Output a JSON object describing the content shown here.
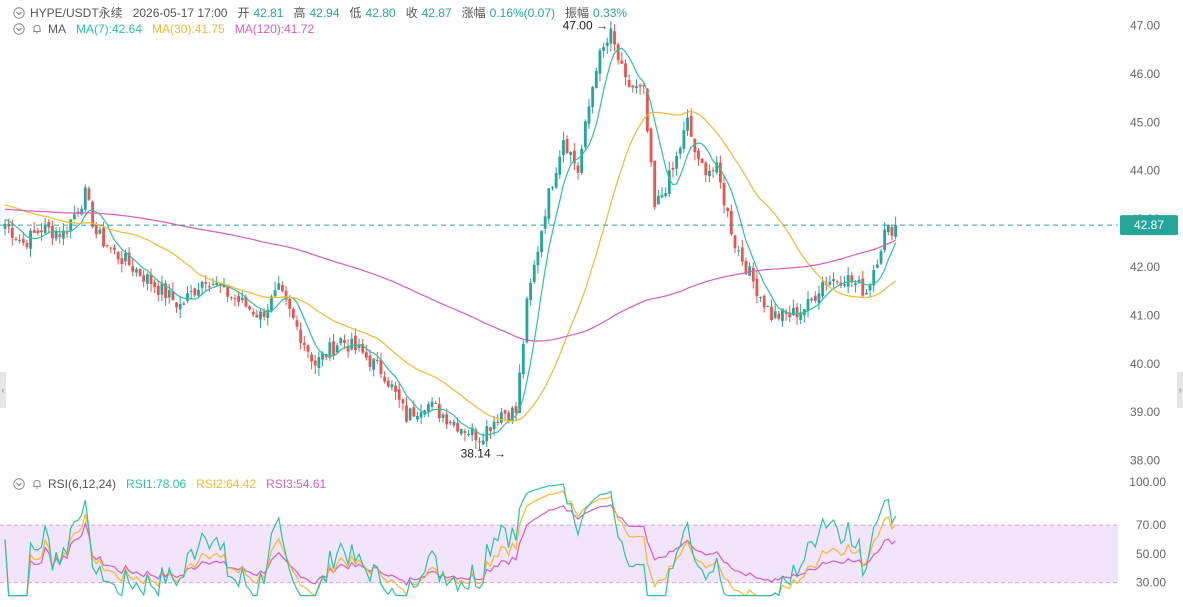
{
  "header": {
    "symbol": "HYPE/USDT永续",
    "datetime": "2026-05-17 17:00",
    "open_label": "开",
    "open": "42.81",
    "high_label": "高",
    "high": "42.94",
    "low_label": "低",
    "low": "42.80",
    "close_label": "收",
    "close": "42.87",
    "change_label": "涨幅",
    "change": "0.16%(0.07)",
    "amp_label": "振幅",
    "amp": "0.33%"
  },
  "ma_legend": {
    "label": "MA",
    "ma7": "MA(7):42.64",
    "ma30": "MA(30):41.75",
    "ma120": "MA(120):41.72"
  },
  "rsi_legend": {
    "label": "RSI(6,12,24)",
    "rsi1": "RSI1:78.06",
    "rsi2": "RSI2:64.42",
    "rsi3": "RSI3:54.61"
  },
  "colors": {
    "up": "#26a69a",
    "down": "#ef5350",
    "ma7": "#2bc4a0",
    "ma30": "#f5b82e",
    "ma120": "#d65cc2",
    "rsi_band": "#f1e4fb",
    "price_line": "#26a69a"
  },
  "icons": {
    "collapse": "chevron-down-icon",
    "visibility": "bell-icon"
  },
  "chart_data": {
    "type": "candlestick",
    "price_axis": {
      "ticks": [
        "47.00",
        "46.00",
        "45.00",
        "44.00",
        "43.00",
        "42.00",
        "41.00",
        "40.00",
        "39.00",
        "38.00"
      ],
      "range": [
        37.8,
        47.45
      ]
    },
    "rsi_axis": {
      "ticks": [
        "100.00",
        "70.00",
        "50.00",
        "30.00"
      ],
      "range": [
        20,
        100
      ]
    },
    "last_price": "42.87",
    "annotations": {
      "high": "47.00",
      "low": "38.14"
    },
    "shape_keypoints": [
      [
        0,
        42.9
      ],
      [
        5,
        42.5
      ],
      [
        10,
        42.8
      ],
      [
        16,
        42.7
      ],
      [
        22,
        43.5
      ],
      [
        25,
        42.7
      ],
      [
        30,
        42.3
      ],
      [
        40,
        41.7
      ],
      [
        48,
        41.2
      ],
      [
        55,
        41.8
      ],
      [
        60,
        41.5
      ],
      [
        70,
        41.0
      ],
      [
        75,
        41.5
      ],
      [
        85,
        40.0
      ],
      [
        92,
        40.5
      ],
      [
        98,
        40.2
      ],
      [
        104,
        39.8
      ],
      [
        110,
        38.9
      ],
      [
        115,
        39.2
      ],
      [
        125,
        38.7
      ],
      [
        130,
        38.5
      ],
      [
        136,
        39.0
      ],
      [
        140,
        39.0
      ],
      [
        143,
        41.2
      ],
      [
        148,
        43.2
      ],
      [
        153,
        44.7
      ],
      [
        157,
        44.0
      ],
      [
        162,
        46.2
      ],
      [
        166,
        46.8
      ],
      [
        170,
        45.8
      ],
      [
        175,
        45.6
      ],
      [
        178,
        43.2
      ],
      [
        183,
        44.0
      ],
      [
        187,
        45.0
      ],
      [
        190,
        44.1
      ],
      [
        195,
        44.0
      ],
      [
        200,
        42.5
      ],
      [
        205,
        41.7
      ],
      [
        210,
        41.0
      ],
      [
        215,
        41.0
      ],
      [
        220,
        41.2
      ],
      [
        224,
        41.7
      ],
      [
        230,
        41.8
      ],
      [
        236,
        41.5
      ],
      [
        241,
        42.7
      ],
      [
        244,
        42.87
      ]
    ]
  }
}
